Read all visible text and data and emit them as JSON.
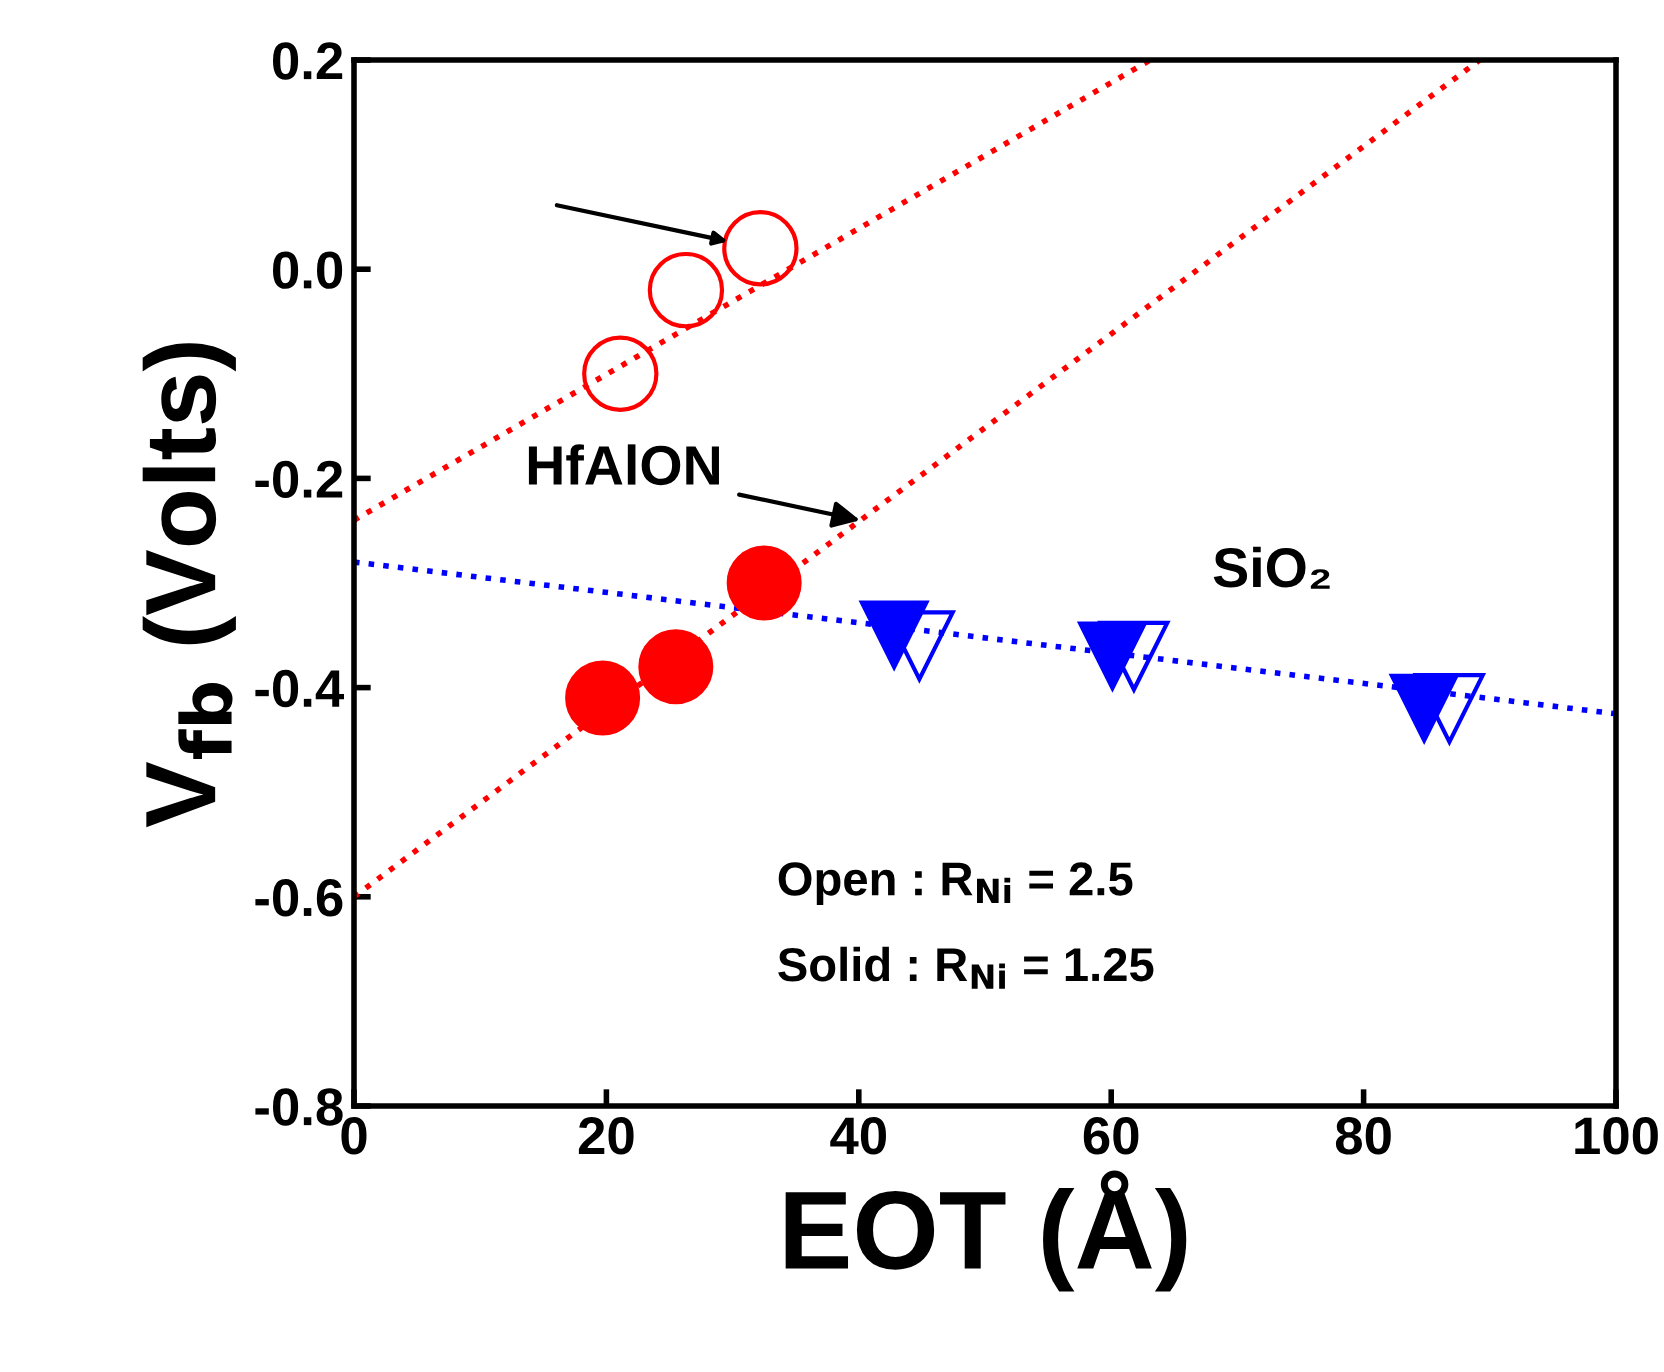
{
  "chart_data": {
    "type": "scatter",
    "xlabel": "EOT (Å)",
    "ylabel": "V$_{fb}$ (Volts)",
    "xlim": [
      0,
      100
    ],
    "ylim": [
      -0.8,
      0.2
    ],
    "xticks": [
      0,
      20,
      40,
      60,
      80,
      100
    ],
    "yticks": [
      -0.8,
      -0.6,
      -0.4,
      -0.2,
      {
        "value": 0,
        "label": "0.0"
      },
      0.2
    ],
    "grid": false,
    "legend": false,
    "series": [
      {
        "marker": "circle",
        "color": "#ff0000",
        "x": [
          21.1,
          26.3,
          32.2
        ],
        "values": [
          -0.1,
          -0.02,
          0.02
        ]
      },
      {
        "marker": "circle",
        "color": "#ff0000",
        "x": [
          19.7,
          25.5,
          32.5
        ],
        "values": [
          -0.41,
          -0.38,
          -0.3
        ]
      },
      {
        "marker": "triangle",
        "color": "#0000ff",
        "x": [
          44.8,
          61.8,
          86.8
        ],
        "values": [
          -0.36,
          -0.37,
          -0.42
        ]
      },
      {
        "marker": "triangle",
        "color": "#0000ff",
        "x": [
          42.8,
          60.1,
          84.8
        ],
        "values": [
          -0.35,
          -0.37,
          -0.42
        ]
      },
      {
        "type": "line",
        "line_style": "dotted",
        "color": "#ff0000",
        "x": [
          0,
          63.1
        ],
        "values": [
          -0.24,
          0.2
        ]
      },
      {
        "type": "line",
        "line_style": "dotted",
        "color": "#ff0000",
        "x": [
          0,
          89.2
        ],
        "values": [
          -0.6,
          0.2
        ]
      },
      {
        "type": "line",
        "line_style": "dotted",
        "color": "#0000ff",
        "x": [
          0,
          100
        ],
        "values": [
          -0.28,
          -0.425
        ]
      }
    ],
    "annotations": [
      {
        "text": "HfAlON",
        "x": 40.1,
        "y": -0.24
      },
      "SiO₂",
      "Open : R$_{Ni}$ = 2.5",
      "Solid : R$_{Ni}$ = 1.25"
    ]
  }
}
